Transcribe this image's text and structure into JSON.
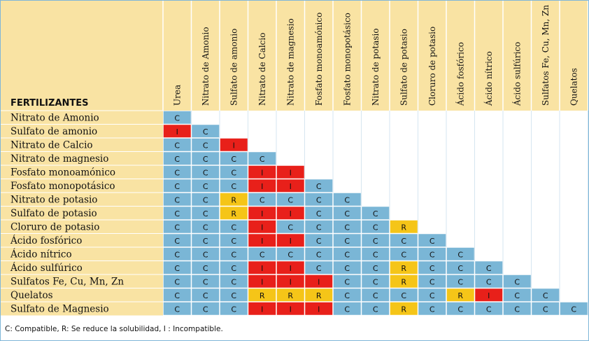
{
  "table": {
    "header_title": "FERTILIZANTES",
    "columns": [
      "Urea",
      "Nitrato de Amonio",
      "Sulfato de amonio",
      "Nitrato de Calcio",
      "Nitrato de magnesio",
      "Fosfato monoamónico",
      "Fosfato monopotásico",
      "Nitrato de potasio",
      "Sulfato de potasio",
      "Cloruro de potasio",
      "Ácido fosfórico",
      "Ácido nítrico",
      "Ácido sulfúrico",
      "Sulfatos Fe, Cu, Mn, Zn",
      "Quelatos"
    ],
    "rows": [
      {
        "label": "Nitrato de Amonio",
        "cells": [
          "C"
        ]
      },
      {
        "label": "Sulfato de amonio",
        "cells": [
          "I",
          "C"
        ]
      },
      {
        "label": "Nitrato de Calcio",
        "cells": [
          "C",
          "C",
          "I"
        ]
      },
      {
        "label": "Nitrato de magnesio",
        "cells": [
          "C",
          "C",
          "C",
          "C"
        ]
      },
      {
        "label": "Fosfato monoamónico",
        "cells": [
          "C",
          "C",
          "C",
          "I",
          "I"
        ]
      },
      {
        "label": "Fosfato monopotásico",
        "cells": [
          "C",
          "C",
          "C",
          "I",
          "I",
          "C"
        ]
      },
      {
        "label": "Nitrato de potasio",
        "cells": [
          "C",
          "C",
          "R",
          "C",
          "C",
          "C",
          "C"
        ]
      },
      {
        "label": "Sulfato de potasio",
        "cells": [
          "C",
          "C",
          "R",
          "I",
          "I",
          "C",
          "C",
          "C"
        ]
      },
      {
        "label": "Cloruro de potasio",
        "cells": [
          "C",
          "C",
          "C",
          "I",
          "C",
          "C",
          "C",
          "C",
          "R"
        ]
      },
      {
        "label": "Ácido fosfórico",
        "cells": [
          "C",
          "C",
          "C",
          "I",
          "I",
          "C",
          "C",
          "C",
          "C",
          "C"
        ]
      },
      {
        "label": "Ácido nítrico",
        "cells": [
          "C",
          "C",
          "C",
          "C",
          "C",
          "C",
          "C",
          "C",
          "C",
          "C",
          "C"
        ]
      },
      {
        "label": "Ácido sulfúrico",
        "cells": [
          "C",
          "C",
          "C",
          "I",
          "I",
          "C",
          "C",
          "C",
          "R",
          "C",
          "C",
          "C"
        ]
      },
      {
        "label": "Sulfatos Fe, Cu, Mn, Zn",
        "cells": [
          "C",
          "C",
          "C",
          "I",
          "I",
          "I",
          "C",
          "C",
          "R",
          "C",
          "C",
          "C",
          "C"
        ]
      },
      {
        "label": "Quelatos",
        "cells": [
          "C",
          "C",
          "C",
          "R",
          "R",
          "R",
          "C",
          "C",
          "C",
          "C",
          "R",
          "I",
          "C",
          "C"
        ]
      },
      {
        "label": "Sulfato de Magnesio",
        "cells": [
          "C",
          "C",
          "C",
          "I",
          "I",
          "I",
          "C",
          "C",
          "R",
          "C",
          "C",
          "C",
          "C",
          "C",
          "C"
        ]
      }
    ]
  },
  "legend": {
    "text": "C: Compatible,   R: Se reduce la solubilidad,   I : Incompatible."
  },
  "colors": {
    "label_bg": "#f9e3a3",
    "C": "#7ab6d6",
    "R": "#f5c518",
    "I": "#e8201a",
    "grid": "#ffffff",
    "outer_border": "#7fb6d8"
  }
}
